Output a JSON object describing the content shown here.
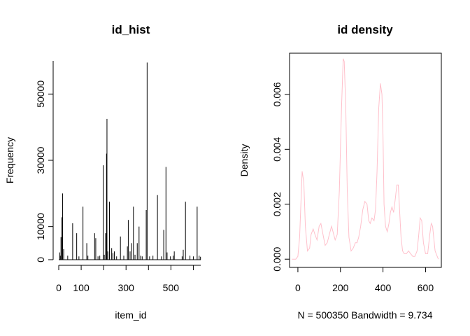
{
  "chart_data": [
    {
      "type": "bar",
      "title": "id_hist",
      "xlabel": "item_id",
      "ylabel": "Frequency",
      "xlim": [
        0,
        633
      ],
      "ylim": [
        0,
        60000
      ],
      "xticks": [
        0,
        100,
        300,
        500
      ],
      "yticks": [
        0,
        10000,
        30000,
        50000
      ],
      "bar_color": "#000000",
      "bars": [
        {
          "x": 4,
          "y": 2200
        },
        {
          "x": 7,
          "y": 1200
        },
        {
          "x": 10,
          "y": 6800
        },
        {
          "x": 14,
          "y": 12800
        },
        {
          "x": 17,
          "y": 20000
        },
        {
          "x": 22,
          "y": 3200
        },
        {
          "x": 40,
          "y": 1200
        },
        {
          "x": 62,
          "y": 11000
        },
        {
          "x": 80,
          "y": 8000
        },
        {
          "x": 90,
          "y": 1000
        },
        {
          "x": 108,
          "y": 16000
        },
        {
          "x": 125,
          "y": 5000
        },
        {
          "x": 130,
          "y": 1200
        },
        {
          "x": 160,
          "y": 8000
        },
        {
          "x": 165,
          "y": 6500
        },
        {
          "x": 175,
          "y": 1000
        },
        {
          "x": 183,
          "y": 1200
        },
        {
          "x": 198,
          "y": 28500
        },
        {
          "x": 203,
          "y": 1500
        },
        {
          "x": 209,
          "y": 8000
        },
        {
          "x": 213,
          "y": 32000
        },
        {
          "x": 215,
          "y": 42500
        },
        {
          "x": 219,
          "y": 2500
        },
        {
          "x": 226,
          "y": 17500
        },
        {
          "x": 236,
          "y": 3500
        },
        {
          "x": 242,
          "y": 2000
        },
        {
          "x": 248,
          "y": 2500
        },
        {
          "x": 258,
          "y": 1000
        },
        {
          "x": 275,
          "y": 7000
        },
        {
          "x": 290,
          "y": 1200
        },
        {
          "x": 306,
          "y": 4000
        },
        {
          "x": 310,
          "y": 12000
        },
        {
          "x": 318,
          "y": 2500
        },
        {
          "x": 325,
          "y": 5000
        },
        {
          "x": 333,
          "y": 16000
        },
        {
          "x": 340,
          "y": 1500
        },
        {
          "x": 350,
          "y": 5000
        },
        {
          "x": 358,
          "y": 10000
        },
        {
          "x": 365,
          "y": 1200
        },
        {
          "x": 372,
          "y": 1000
        },
        {
          "x": 390,
          "y": 15000
        },
        {
          "x": 394,
          "y": 59500
        },
        {
          "x": 405,
          "y": 1000
        },
        {
          "x": 420,
          "y": 1200
        },
        {
          "x": 440,
          "y": 19500
        },
        {
          "x": 458,
          "y": 1000
        },
        {
          "x": 468,
          "y": 9000
        },
        {
          "x": 478,
          "y": 28000
        },
        {
          "x": 483,
          "y": 2200
        },
        {
          "x": 498,
          "y": 1000
        },
        {
          "x": 510,
          "y": 1200
        },
        {
          "x": 515,
          "y": 2500
        },
        {
          "x": 550,
          "y": 1000
        },
        {
          "x": 555,
          "y": 3000
        },
        {
          "x": 565,
          "y": 17500
        },
        {
          "x": 585,
          "y": 1200
        },
        {
          "x": 600,
          "y": 1000
        },
        {
          "x": 617,
          "y": 16000
        },
        {
          "x": 626,
          "y": 1200
        },
        {
          "x": 632,
          "y": 900
        }
      ]
    },
    {
      "type": "line",
      "title": "id density",
      "xlabel": "N = 500350   Bandwidth = 9.734",
      "ylabel": "Density",
      "xlim": [
        -39.2,
        674.2
      ],
      "ylim": [
        -0.0003,
        0.0075
      ],
      "xticks": [
        0,
        200,
        400,
        600
      ],
      "yticks": [
        0.0,
        0.002,
        0.004,
        0.006
      ],
      "ytick_labels": [
        "0.000",
        "0.002",
        "0.004",
        "0.006"
      ],
      "line_color": "#ffc0cb",
      "box": true,
      "x": [
        -28,
        -10,
        0,
        8,
        15,
        20,
        28,
        35,
        45,
        55,
        62,
        72,
        80,
        90,
        100,
        108,
        118,
        128,
        138,
        148,
        158,
        165,
        175,
        185,
        195,
        205,
        213,
        218,
        225,
        232,
        240,
        250,
        260,
        270,
        278,
        286,
        295,
        305,
        315,
        325,
        333,
        340,
        348,
        358,
        365,
        372,
        380,
        388,
        395,
        400,
        405,
        412,
        420,
        428,
        435,
        442,
        450,
        458,
        465,
        472,
        478,
        485,
        492,
        500,
        510,
        520,
        530,
        540,
        550,
        560,
        567,
        575,
        582,
        590,
        600,
        610,
        620,
        627,
        633,
        645,
        660
      ],
      "y": [
        0.0,
        0.0,
        0.0001,
        0.0008,
        0.0022,
        0.0032,
        0.0028,
        0.0012,
        0.0003,
        0.0004,
        0.0009,
        0.0011,
        0.0009,
        0.0007,
        0.0012,
        0.0013,
        0.0009,
        0.0005,
        0.0006,
        0.0009,
        0.0012,
        0.001,
        0.0007,
        0.0009,
        0.0025,
        0.0055,
        0.0073,
        0.0072,
        0.0055,
        0.0025,
        0.0008,
        0.0003,
        0.0004,
        0.0006,
        0.0006,
        0.0008,
        0.0012,
        0.0018,
        0.0021,
        0.002,
        0.0014,
        0.0013,
        0.0015,
        0.0014,
        0.0018,
        0.0032,
        0.0055,
        0.0064,
        0.006,
        0.0045,
        0.002,
        0.0012,
        0.001,
        0.0013,
        0.0017,
        0.0019,
        0.0017,
        0.0022,
        0.0027,
        0.0027,
        0.0018,
        0.0008,
        0.0003,
        0.0002,
        0.0002,
        0.0003,
        0.0002,
        0.0001,
        0.0001,
        0.0003,
        0.0008,
        0.0015,
        0.0014,
        0.0006,
        0.0002,
        0.0002,
        0.0009,
        0.0013,
        0.0012,
        0.0003,
        0.0
      ]
    }
  ]
}
